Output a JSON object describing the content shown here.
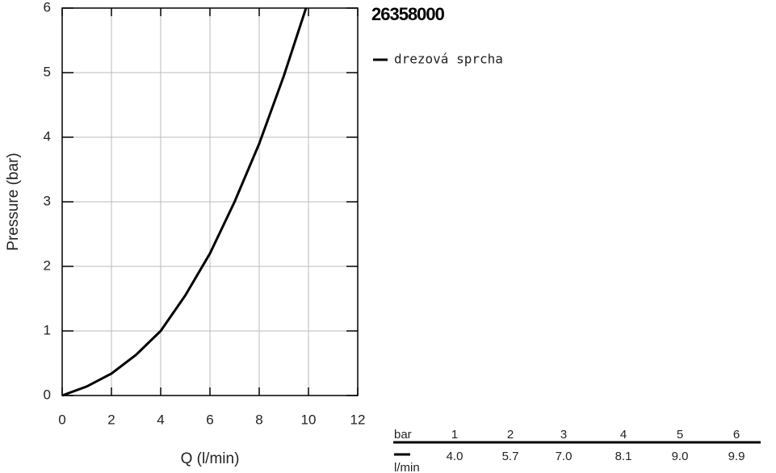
{
  "chart_data": {
    "type": "line",
    "title": "26358000",
    "x_label": "Q (l/min)",
    "y_label": "Pressure (bar)",
    "x": [
      0,
      1,
      2,
      3,
      4,
      5,
      6,
      7,
      8,
      9,
      9.9
    ],
    "series": [
      {
        "name": "drezová sprcha",
        "color": "#000000",
        "values": [
          0,
          0.14,
          0.34,
          0.63,
          1.0,
          1.55,
          2.2,
          3.0,
          3.9,
          4.95,
          6
        ]
      }
    ],
    "xlim": [
      0,
      12
    ],
    "xticks": [
      0,
      2,
      4,
      6,
      8,
      10,
      12
    ],
    "ylim": [
      0,
      6
    ],
    "yticks": [
      0,
      1,
      2,
      3,
      4,
      5,
      6
    ],
    "grid": true
  },
  "table": {
    "header": [
      "bar",
      "1",
      "2",
      "3",
      "4",
      "5",
      "6"
    ],
    "unit": "l/min",
    "values": [
      "4.0",
      "5.7",
      "7.0",
      "8.1",
      "9.0",
      "9.9"
    ]
  }
}
